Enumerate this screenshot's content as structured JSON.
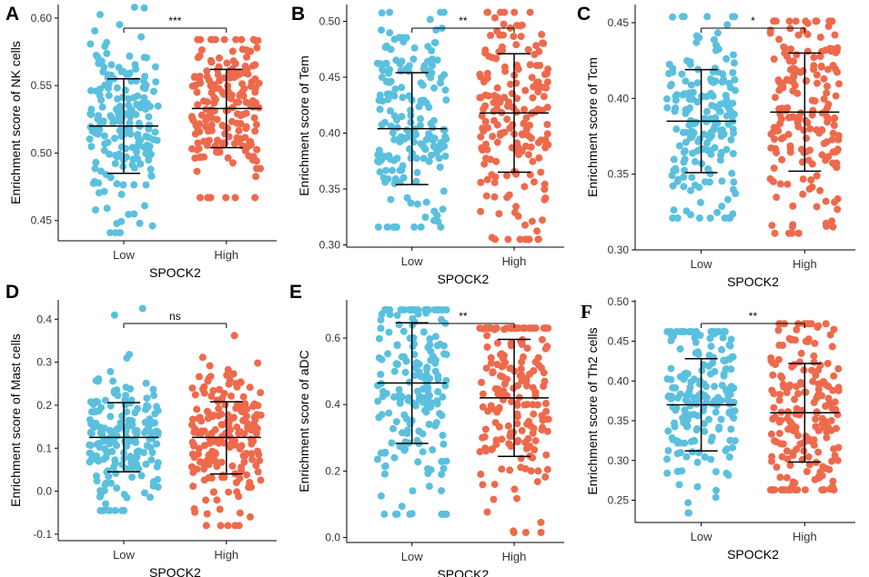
{
  "colors": {
    "low": "#5BC0DE",
    "high": "#EE6A4C",
    "axis": "#000000"
  },
  "chart_data": [
    {
      "panel": "A",
      "type": "scatter",
      "title": "",
      "xlabel": "SPOCK2",
      "ylabel": "Enrichment score of NK cells",
      "categories": [
        "Low",
        "High"
      ],
      "ylim": [
        0.435,
        0.61
      ],
      "yticks": [
        0.45,
        0.5,
        0.55,
        0.6
      ],
      "ytick_labels": [
        "0.45",
        "0.50",
        "0.55",
        "0.60"
      ],
      "significance": "***",
      "groups": [
        {
          "name": "Low",
          "mean": 0.52,
          "lower": 0.485,
          "upper": 0.555,
          "min": 0.441,
          "max": 0.608
        },
        {
          "name": "High",
          "mean": 0.533,
          "lower": 0.504,
          "upper": 0.562,
          "min": 0.467,
          "max": 0.584
        }
      ]
    },
    {
      "panel": "B",
      "type": "scatter",
      "title": "",
      "xlabel": "SPOCK2",
      "ylabel": "Enrichment score of Tem",
      "categories": [
        "Low",
        "High"
      ],
      "ylim": [
        0.298,
        0.515
      ],
      "yticks": [
        0.3,
        0.35,
        0.4,
        0.45,
        0.5
      ],
      "ytick_labels": [
        "0.30",
        "0.35",
        "0.40",
        "0.45",
        "0.50"
      ],
      "significance": "**",
      "groups": [
        {
          "name": "Low",
          "mean": 0.404,
          "lower": 0.354,
          "upper": 0.454,
          "min": 0.316,
          "max": 0.508
        },
        {
          "name": "High",
          "mean": 0.418,
          "lower": 0.365,
          "upper": 0.471,
          "min": 0.305,
          "max": 0.508
        }
      ]
    },
    {
      "panel": "C",
      "type": "scatter",
      "title": "",
      "xlabel": "SPOCK2",
      "ylabel": "Enrichment score of Tcm",
      "categories": [
        "Low",
        "High"
      ],
      "ylim": [
        0.3,
        0.462
      ],
      "yticks": [
        0.3,
        0.35,
        0.4,
        0.45
      ],
      "ytick_labels": [
        "0.30",
        "0.35",
        "0.40",
        "0.45"
      ],
      "significance": "*",
      "groups": [
        {
          "name": "Low",
          "mean": 0.385,
          "lower": 0.351,
          "upper": 0.419,
          "min": 0.321,
          "max": 0.454
        },
        {
          "name": "High",
          "mean": 0.391,
          "lower": 0.352,
          "upper": 0.43,
          "min": 0.311,
          "max": 0.451
        }
      ]
    },
    {
      "panel": "D",
      "type": "scatter",
      "title": "",
      "xlabel": "SPOCK2",
      "ylabel": "Enrichment score of Mast cells",
      "categories": [
        "Low",
        "High"
      ],
      "ylim": [
        -0.115,
        0.445
      ],
      "yticks": [
        -0.1,
        0.0,
        0.1,
        0.2,
        0.3,
        0.4
      ],
      "ytick_labels": [
        "-0.1",
        "0.0",
        "0.1",
        "0.2",
        "0.3",
        "0.4"
      ],
      "significance": "ns",
      "groups": [
        {
          "name": "Low",
          "mean": 0.125,
          "lower": 0.045,
          "upper": 0.206,
          "min": -0.045,
          "max": 0.425
        },
        {
          "name": "High",
          "mean": 0.125,
          "lower": 0.04,
          "upper": 0.208,
          "min": -0.08,
          "max": 0.362
        }
      ]
    },
    {
      "panel": "E",
      "type": "scatter",
      "title": "",
      "xlabel": "SPOCK2",
      "ylabel": "Enrichment score of aDC",
      "categories": [
        "Low",
        "High"
      ],
      "ylim": [
        -0.015,
        0.715
      ],
      "yticks": [
        0.0,
        0.2,
        0.4,
        0.6
      ],
      "ytick_labels": [
        "0.0",
        "0.2",
        "0.4",
        "0.6"
      ],
      "significance": "**",
      "groups": [
        {
          "name": "Low",
          "mean": 0.465,
          "lower": 0.283,
          "upper": 0.646,
          "min": 0.07,
          "max": 0.685
        },
        {
          "name": "High",
          "mean": 0.42,
          "lower": 0.244,
          "upper": 0.596,
          "min": 0.015,
          "max": 0.63
        }
      ]
    },
    {
      "panel": "F",
      "type": "scatter",
      "title": "",
      "xlabel": "SPOCK2",
      "ylabel": "Enrichment score of Th2 cells",
      "categories": [
        "Low",
        "High"
      ],
      "ylim": [
        0.222,
        0.502
      ],
      "yticks": [
        0.25,
        0.3,
        0.35,
        0.4,
        0.45,
        0.5
      ],
      "ytick_labels": [
        "0.25",
        "0.30",
        "0.35",
        "0.40",
        "0.45",
        "0.50"
      ],
      "significance": "**",
      "groups": [
        {
          "name": "Low",
          "mean": 0.37,
          "lower": 0.312,
          "upper": 0.428,
          "min": 0.234,
          "max": 0.462
        },
        {
          "name": "High",
          "mean": 0.36,
          "lower": 0.298,
          "upper": 0.422,
          "min": 0.263,
          "max": 0.472
        }
      ]
    }
  ]
}
